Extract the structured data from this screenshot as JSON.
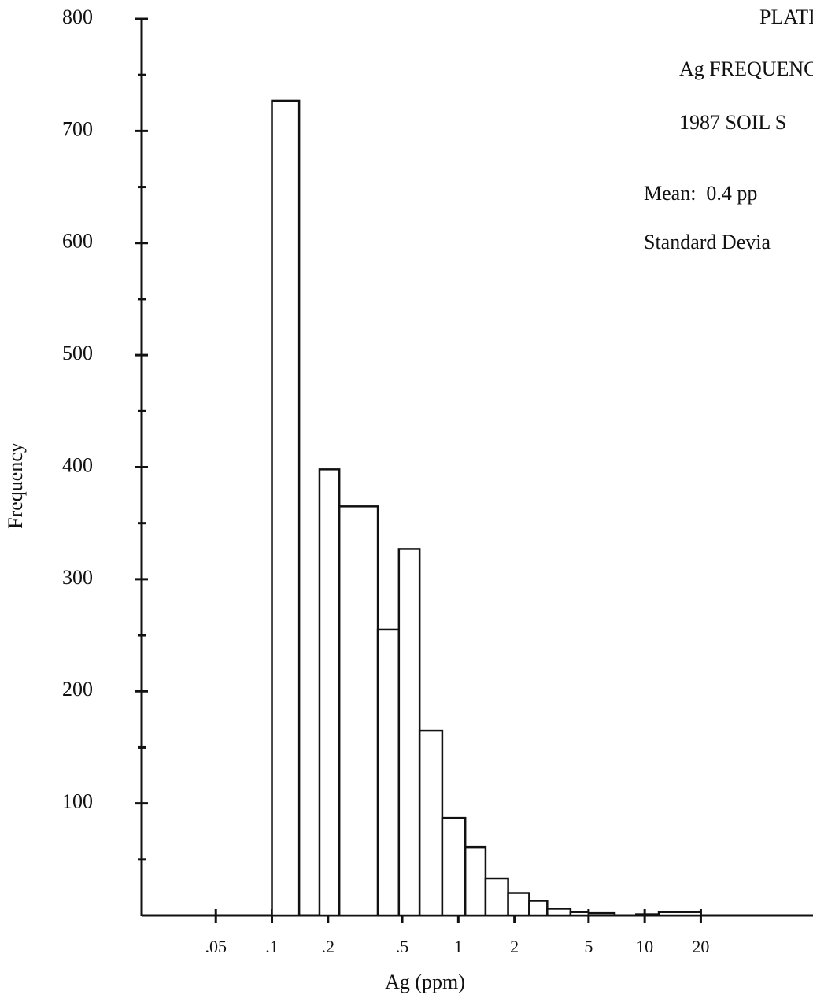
{
  "chart_data": {
    "type": "histogram",
    "title_lines": [
      "PLATI",
      "Ag FREQUENC",
      "1987 SOIL S"
    ],
    "stats_lines": [
      "Mean:  0.4 pp",
      "Standard Devia"
    ],
    "x_label": "Ag (ppm)",
    "y_label": "Frequency",
    "bins": [
      0.1,
      0.14,
      0.18,
      0.23,
      0.37,
      0.48,
      0.62,
      0.82,
      1.09,
      1.4,
      1.85,
      2.4,
      3,
      4,
      5,
      6.9,
      9,
      11.9,
      20
    ],
    "values": [
      727,
      0,
      398,
      365,
      255,
      327,
      165,
      87,
      61,
      33,
      20,
      13,
      6,
      3,
      2,
      0,
      1,
      3
    ],
    "color": "#ffffff",
    "x_log": true,
    "xlim": [
      0.02,
      80
    ],
    "xticks": [
      {
        "value": 0.05,
        "label": ".05"
      },
      {
        "value": 0.1,
        "label": ".1"
      },
      {
        "value": 0.2,
        "label": ".2"
      },
      {
        "value": 0.5,
        "label": ".5"
      },
      1,
      2,
      5,
      10,
      20
    ],
    "ylim": [
      0,
      800
    ],
    "yticks": [
      100,
      200,
      300,
      400,
      500,
      600,
      700,
      800
    ]
  }
}
